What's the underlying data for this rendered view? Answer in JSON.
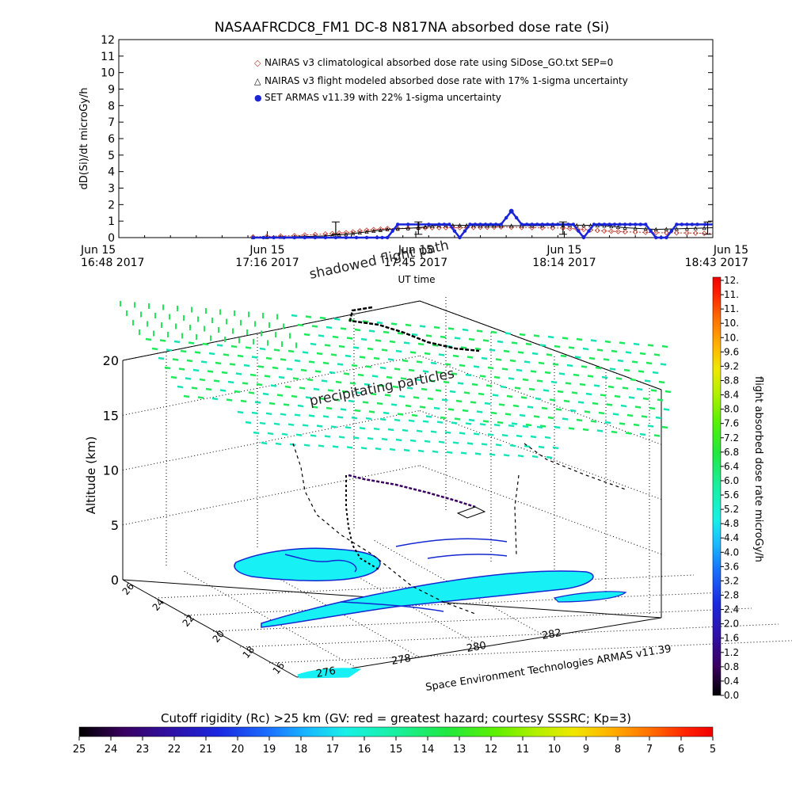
{
  "chart_data": [
    {
      "type": "line",
      "title": "NASAAFRCDC8_FM1 DC-8   N817NA absorbed dose rate (Si)",
      "ylabel": "dD(Si)/dt microGy/h",
      "xlabel": "UT time",
      "ylim": [
        0,
        12
      ],
      "yticks": [
        "0",
        "1",
        "2",
        "3",
        "4",
        "5",
        "6",
        "7",
        "8",
        "9",
        "10",
        "11",
        "12"
      ],
      "xtick_labels": [
        {
          "line1": "Jun 15",
          "line2": "16:48 2017"
        },
        {
          "line1": "Jun 15",
          "line2": "17:16 2017"
        },
        {
          "line1": "Jun 15",
          "line2": "17:45 2017"
        },
        {
          "line1": "Jun 15",
          "line2": "18:14 2017"
        },
        {
          "line1": "Jun 15",
          "line2": "18:43 2017"
        }
      ],
      "x_range_minutes": [
        0,
        115
      ],
      "legend": [
        {
          "marker": "◇",
          "color": "#c0392b",
          "label": "NAIRAS v3 climatological absorbed dose rate using SiDose_GO.txt SEP=0"
        },
        {
          "marker": "△",
          "color": "#000000",
          "label": "NAIRAS v3 flight modeled absorbed dose rate with 17% 1-sigma uncertainty"
        },
        {
          "marker": "●",
          "color": "#1a24d8",
          "label": "SET ARMAS v11.39 with 22% 1-sigma uncertainty"
        }
      ],
      "series": [
        {
          "name": "NAIRAS v3 climatological absorbed dose rate using SiDose_GO.txt SEP=0",
          "color": "#c0392b",
          "x": [
            26,
            34,
            40,
            44,
            48,
            52,
            58,
            62,
            66,
            70,
            74,
            80,
            86,
            90,
            94,
            98,
            104,
            110,
            115
          ],
          "values": [
            0.05,
            0.12,
            0.22,
            0.3,
            0.45,
            0.55,
            0.58,
            0.6,
            0.6,
            0.62,
            0.64,
            0.6,
            0.58,
            0.5,
            0.4,
            0.35,
            0.3,
            0.28,
            0.25
          ]
        },
        {
          "name": "NAIRAS v3 flight modeled absorbed dose rate with 17% 1-sigma uncertainty",
          "color": "#000000",
          "x": [
            26,
            34,
            40,
            44,
            48,
            52,
            58,
            62,
            66,
            70,
            74,
            80,
            86,
            90,
            94,
            98,
            104,
            110,
            115
          ],
          "values": [
            0.02,
            0.05,
            0.1,
            0.2,
            0.35,
            0.5,
            0.6,
            0.75,
            0.75,
            0.72,
            0.72,
            0.72,
            0.75,
            0.75,
            0.72,
            0.6,
            0.5,
            0.55,
            0.6
          ]
        },
        {
          "name": "SET ARMAS v11.39 with 22% 1-sigma uncertainty",
          "color": "#1a24d8",
          "x": [
            26,
            30,
            34,
            38,
            42,
            46,
            50,
            52,
            54,
            58,
            62,
            64,
            66,
            68,
            70,
            72,
            74,
            76,
            78,
            80,
            82,
            84,
            86,
            88,
            90,
            92,
            94,
            96,
            98,
            100,
            102,
            104,
            106,
            108,
            110,
            112,
            115
          ],
          "values": [
            0,
            0,
            0,
            0,
            0,
            0,
            0,
            0,
            0.8,
            0.8,
            0.8,
            0.8,
            0,
            0.8,
            0.8,
            0.8,
            0.8,
            1.6,
            0.8,
            0.8,
            0.8,
            0.8,
            0.8,
            0.8,
            0,
            0.8,
            0.8,
            0.8,
            0.8,
            0.8,
            0.8,
            0,
            0,
            0.8,
            0.8,
            0.8,
            0.8
          ]
        }
      ],
      "error_bars_x": [
        42,
        58,
        86,
        114
      ]
    },
    {
      "type": "heatmap",
      "zlabel": "Altitude (km)",
      "zticks": [
        "0",
        "5",
        "10",
        "15",
        "20"
      ],
      "lat_ticks": [
        "26",
        "24",
        "22",
        "20",
        "18",
        "16"
      ],
      "lon_ticks": [
        "276",
        "278",
        "280",
        "282"
      ],
      "annotations": [
        "shadowed flight path",
        "precipitating particles"
      ],
      "footer_credit": "Space Environment Technologies ARMAS v11.39"
    }
  ],
  "right_colorbar": {
    "label": "flight absorbed dose rate microGy/h",
    "ticks": [
      "12.",
      "11.",
      "11.",
      "10.",
      "10.",
      "9.6",
      "9.2",
      "8.8",
      "8.4",
      "8.0",
      "7.6",
      "7.2",
      "6.8",
      "6.4",
      "6.0",
      "5.6",
      "5.2",
      "4.8",
      "4.4",
      "4.0",
      "3.6",
      "3.2",
      "2.8",
      "2.4",
      "2.0",
      "1.6",
      "1.2",
      "0.8",
      "0.4",
      "0.0"
    ]
  },
  "bottom_colorbar": {
    "title": "Cutoff rigidity (Rc) >25 km (GV: red = greatest hazard; courtesy SSSRC; Kp=3)",
    "ticks": [
      "25",
      "24",
      "23",
      "22",
      "21",
      "20",
      "19",
      "18",
      "17",
      "16",
      "15",
      "14",
      "13",
      "12",
      "11",
      "10",
      "9",
      "8",
      "7",
      "6",
      "5"
    ]
  },
  "colors": {
    "cyan_fill": "#17f1f6",
    "dark_blue": "#1328d0",
    "green_dash": "#22e85a",
    "teal_dash": "#18e3b5"
  }
}
